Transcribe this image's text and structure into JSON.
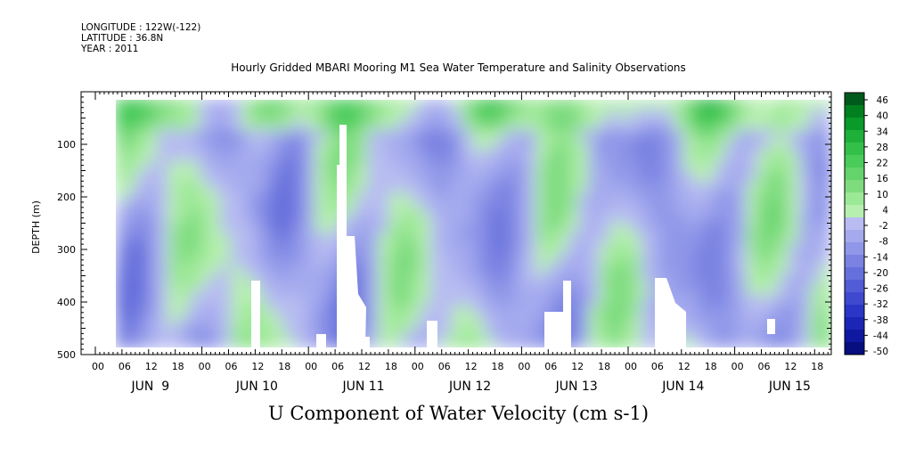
{
  "header": {
    "longitude": "LONGITUDE : 122W(-122)",
    "latitude": "LATITUDE : 36.8N",
    "year": "YEAR : 2011"
  },
  "chart_data": {
    "type": "heatmap",
    "title": "Hourly Gridded MBARI Mooring M1 Sea Water Temperature and Salinity Observations",
    "xlabel": "U Component of Water Velocity (cm s-1)",
    "ylabel": "DEPTH (m)",
    "y_axis": {
      "ticks": [
        100,
        200,
        300,
        400,
        500
      ],
      "range": [
        0,
        500
      ],
      "inverted": true
    },
    "x_axis": {
      "hour_ticks": [
        "00",
        "06",
        "12",
        "18",
        "00",
        "06",
        "12",
        "18",
        "00",
        "06",
        "12",
        "18",
        "00",
        "06",
        "12",
        "18",
        "00",
        "06",
        "12",
        "18",
        "00",
        "06",
        "12",
        "18",
        "00",
        "06",
        "12",
        "18"
      ],
      "day_labels": [
        "JUN  9",
        "JUN 10",
        "JUN 11",
        "JUN 12",
        "JUN 13",
        "JUN 14",
        "JUN 15"
      ]
    },
    "colorbar": {
      "labels": [
        "46",
        "40",
        "34",
        "28",
        "22",
        "16",
        "10",
        "4",
        "-2",
        "-8",
        "-14",
        "-20",
        "-26",
        "-32",
        "-38",
        "-44",
        "-50"
      ],
      "colors": [
        "#005a1c",
        "#00801e",
        "#0a9a2a",
        "#1fb03a",
        "#33c049",
        "#49cc5a",
        "#64d36c",
        "#7edc7f",
        "#9be896",
        "#b7efb0",
        "#b8bcf2",
        "#a5aaee",
        "#8f97e8",
        "#7a83e2",
        "#6670dc",
        "#525cd6",
        "#3f49cf",
        "#2c36c6",
        "#1c26b6",
        "#0f18a0",
        "#060e80"
      ]
    },
    "series_note": "U velocity field vs time (Jun 9-15 2011) and depth (~20-490 m); green positive, blue negative",
    "grid": false
  }
}
